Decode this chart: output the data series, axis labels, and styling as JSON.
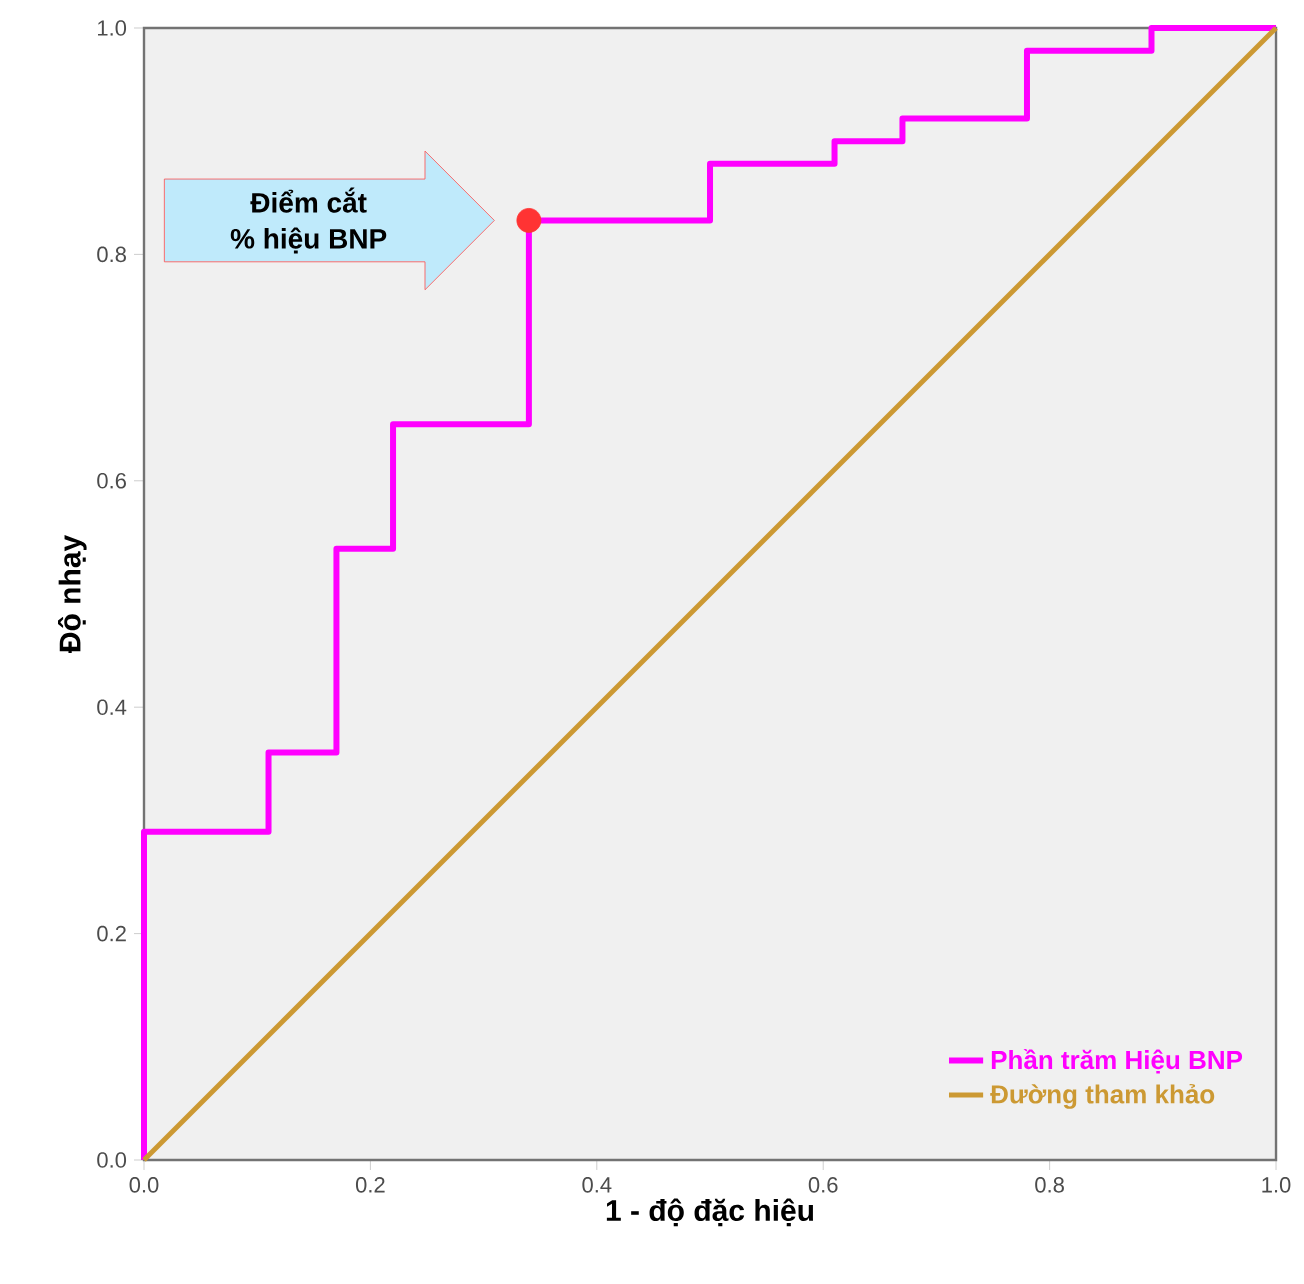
{
  "chart_data": {
    "type": "line",
    "xlabel": "1 - độ đặc hiệu",
    "ylabel": "Độ nhạy",
    "xlim": [
      0,
      1
    ],
    "ylim": [
      0,
      1
    ],
    "xticks": [
      {
        "value": 0,
        "label": "0.0"
      },
      0.2,
      0.4,
      0.6,
      0.8,
      {
        "value": 1,
        "label": "1.0"
      }
    ],
    "yticks": [
      {
        "value": 0,
        "label": "0.0"
      },
      0.2,
      0.4,
      0.6,
      0.8,
      {
        "value": 1,
        "label": "1.0"
      }
    ],
    "grid": false,
    "legend": "bottom right",
    "series": [
      {
        "name": "Phần trăm Hiệu BNP",
        "type": "step",
        "color": "#ff00ff",
        "marker": "none",
        "x": [
          0,
          0,
          0.11,
          0.17,
          0.22,
          0.34,
          0.5,
          0.61,
          0.67,
          0.78,
          0.89,
          1.0
        ],
        "values": [
          0,
          0.29,
          0.36,
          0.54,
          0.65,
          0.83,
          0.88,
          0.9,
          0.92,
          0.98,
          1.0,
          1.0
        ]
      },
      {
        "name": "Đường tham khảo",
        "type": "line",
        "color": "#cc9933",
        "marker": "none",
        "x": [
          0,
          1
        ],
        "values": [
          0,
          1
        ]
      },
      {
        "type": "scatter",
        "color": "#ff3333",
        "marker": "circle",
        "x": [
          0.34
        ],
        "values": [
          0.83
        ]
      }
    ],
    "annotations": [
      "Điểm cắt",
      "% hiệu BNP"
    ]
  }
}
